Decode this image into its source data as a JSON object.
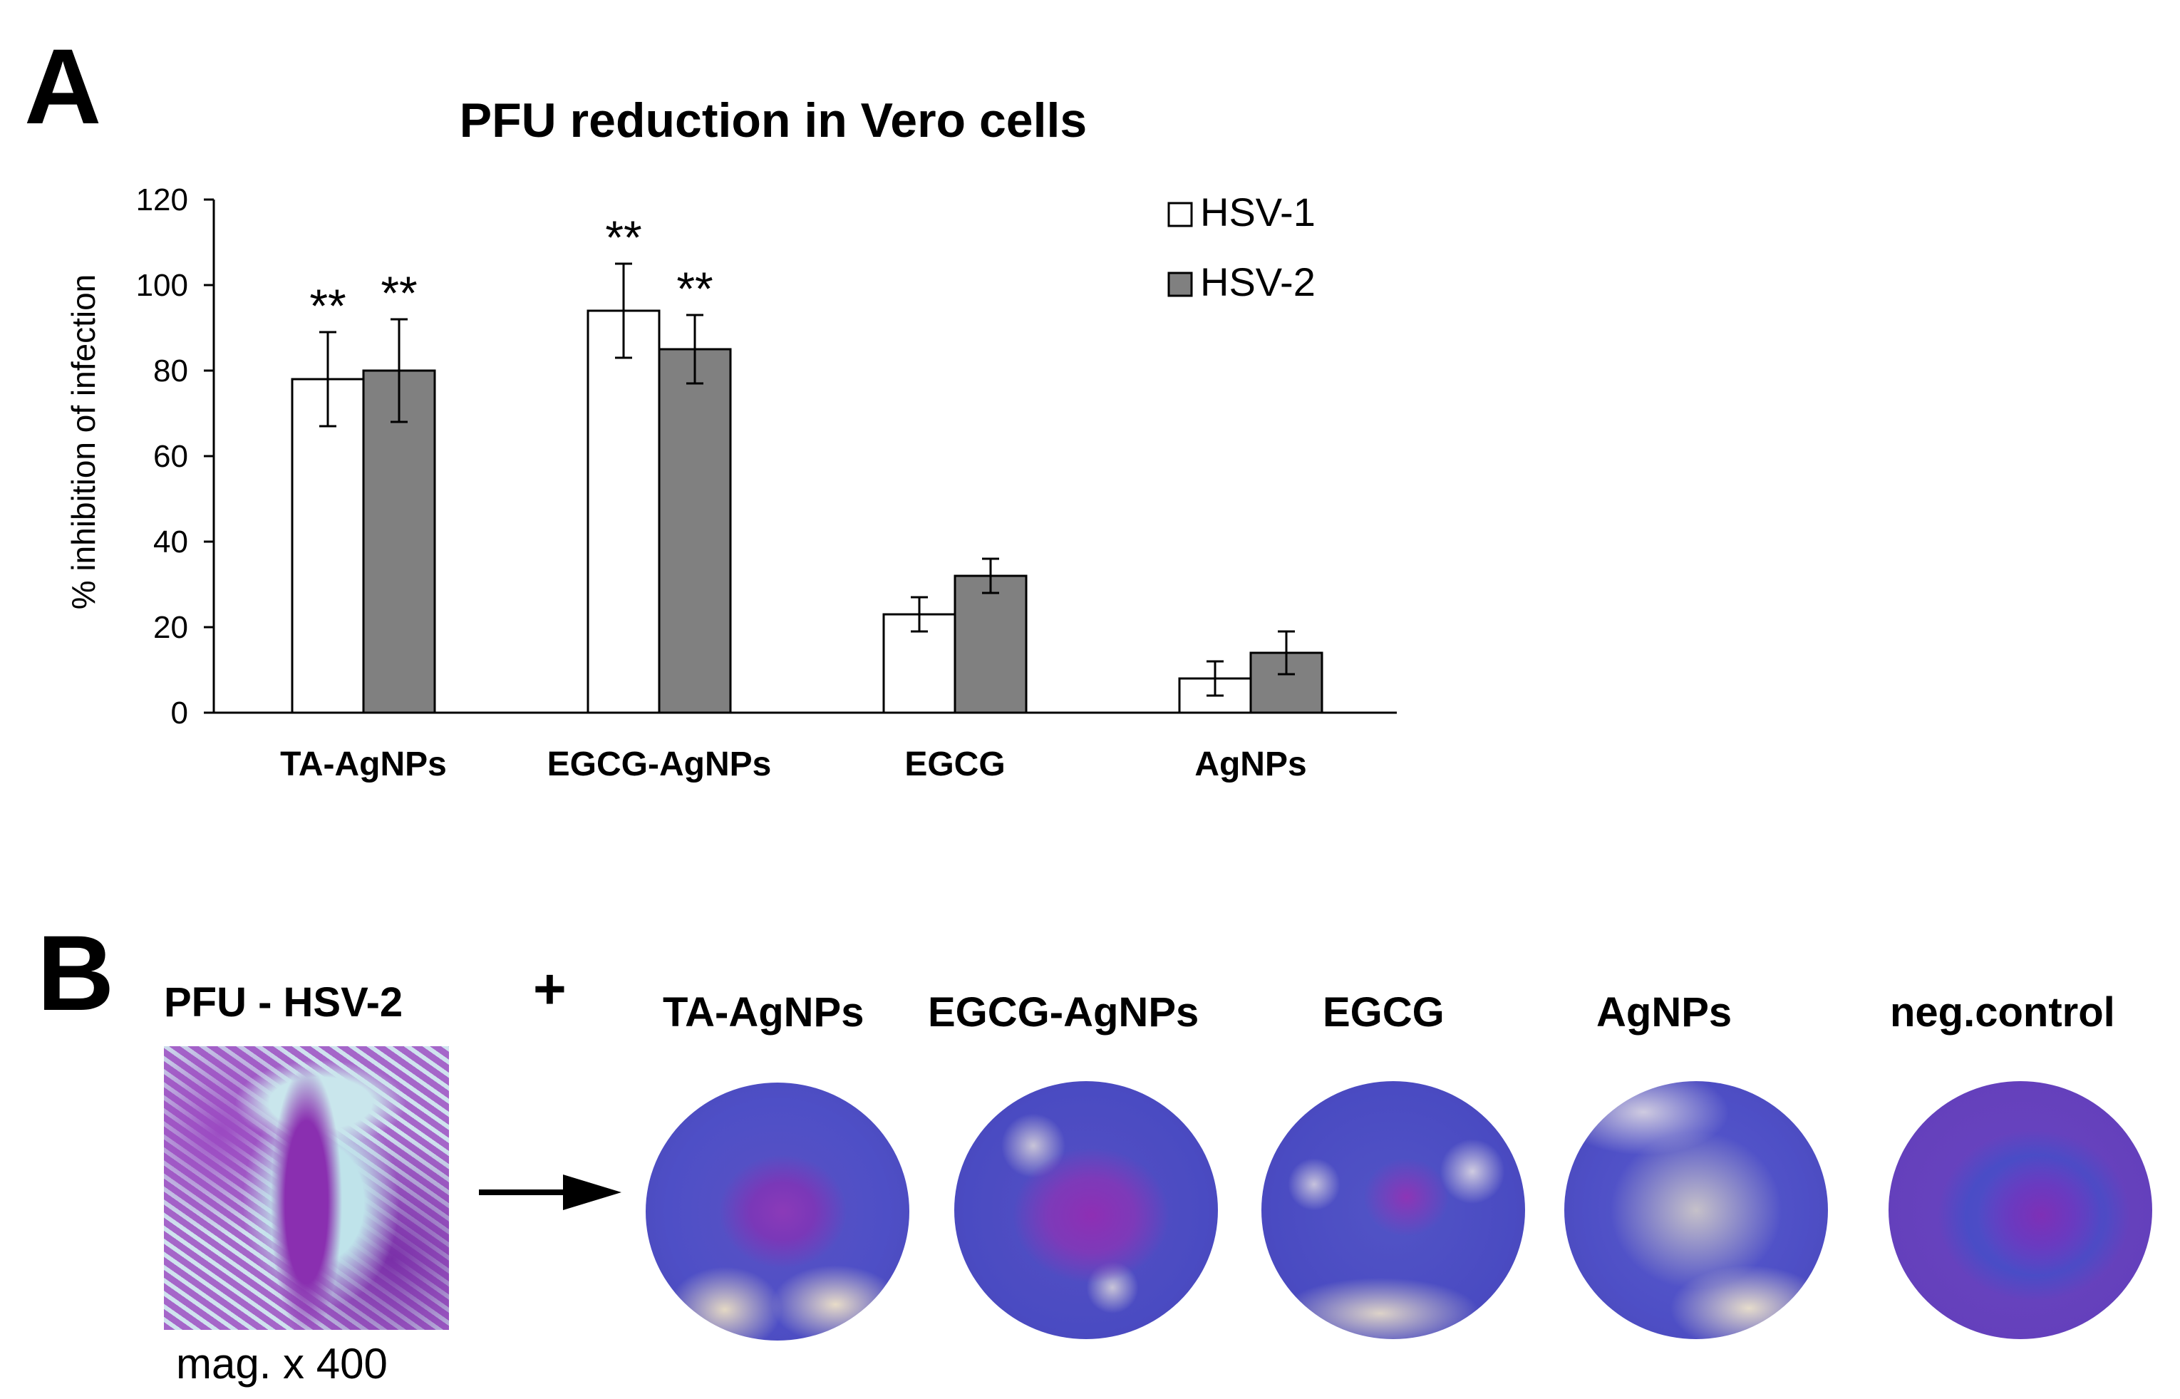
{
  "panel_a": {
    "letter": "A"
  },
  "panel_b": {
    "letter": "B",
    "pfu_label": "PFU - HSV-2",
    "plus_sign": "+",
    "mag_label": "mag. x 400",
    "plates": [
      {
        "label": "TA-AgNPs"
      },
      {
        "label": "EGCG-AgNPs"
      },
      {
        "label": "EGCG"
      },
      {
        "label": "AgNPs"
      },
      {
        "label": "neg.control"
      }
    ]
  },
  "colors": {
    "hsv1": "#ffffff",
    "hsv2": "#808080",
    "stroke": "#000000"
  },
  "chart_data": {
    "type": "bar",
    "title": "PFU reduction in Vero cells",
    "xlabel": "",
    "ylabel": "% inhibition of infection",
    "ylim": [
      0,
      120
    ],
    "yticks": [
      "0",
      "20",
      "40",
      "60",
      "80",
      "100",
      "120"
    ],
    "categories": [
      "TA-AgNPs",
      "EGCG-AgNPs",
      "EGCG",
      "AgNPs"
    ],
    "legend_position": "top-right",
    "grid": false,
    "series": [
      {
        "name": "HSV-1",
        "values": [
          78,
          94,
          23,
          8
        ],
        "errors": [
          11,
          11,
          4,
          4
        ],
        "annotations": [
          "**",
          "**",
          "",
          ""
        ]
      },
      {
        "name": "HSV-2",
        "values": [
          80,
          85,
          32,
          14
        ],
        "errors": [
          12,
          8,
          4,
          5
        ],
        "annotations": [
          "**",
          "**",
          "",
          ""
        ]
      }
    ]
  }
}
